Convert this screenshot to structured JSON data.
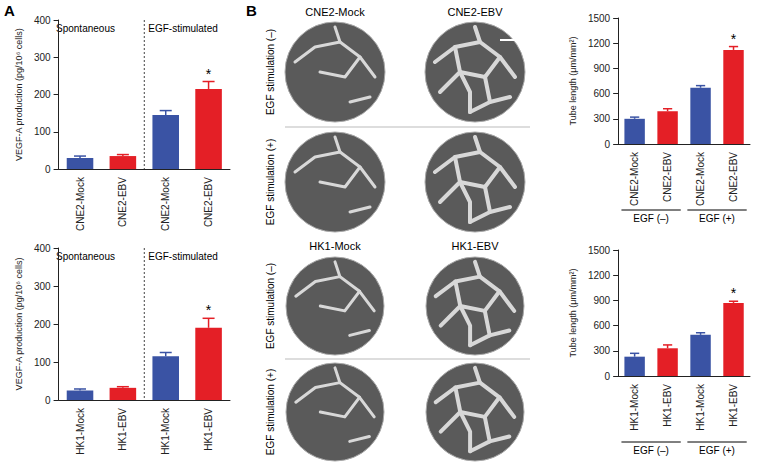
{
  "chart_data": [
    {
      "type": "bar",
      "categories": [
        "CNE2-Mock",
        "CNE2-EBV",
        "CNE2-Mock",
        "CNE2-EBV"
      ],
      "values": [
        30,
        35,
        145,
        215
      ],
      "errors": [
        5,
        4,
        12,
        20
      ],
      "colors": [
        "#3a53a4",
        "#e41f26",
        "#3a53a4",
        "#e41f26"
      ],
      "ylim": [
        0,
        400
      ],
      "yticks": [
        0,
        100,
        200,
        300,
        400
      ],
      "grid": false,
      "y_label": "VEGF-A production (pg/10⁶ cells)",
      "section_labels": [
        "Spontaneous",
        "EGF-stimulated"
      ],
      "annotations": [
        {
          "text": "*",
          "index": 3
        }
      ]
    },
    {
      "type": "bar",
      "categories": [
        "HK1-Mock",
        "HK1-EBV",
        "HK1-Mock",
        "HK1-EBV"
      ],
      "values": [
        25,
        32,
        115,
        190
      ],
      "errors": [
        4,
        3,
        10,
        25
      ],
      "colors": [
        "#3a53a4",
        "#e41f26",
        "#3a53a4",
        "#e41f26"
      ],
      "ylim": [
        0,
        400
      ],
      "yticks": [
        0,
        100,
        200,
        300,
        400
      ],
      "grid": false,
      "y_label": "VEGF-A production (pg/10⁶ cells)",
      "section_labels": [
        "Spontaneous",
        "EGF-stimulated"
      ],
      "annotations": [
        {
          "text": "*",
          "index": 3
        }
      ]
    },
    {
      "type": "bar",
      "categories": [
        "CNE2-Mock",
        "CNE2-EBV",
        "CNE2-Mock",
        "CNE2-EBV"
      ],
      "values": [
        300,
        390,
        670,
        1120
      ],
      "errors": [
        20,
        30,
        25,
        40
      ],
      "colors": [
        "#3a53a4",
        "#e41f26",
        "#3a53a4",
        "#e41f26"
      ],
      "ylim": [
        0,
        1500
      ],
      "yticks": [
        0,
        300,
        600,
        900,
        1200,
        1500
      ],
      "grid": false,
      "y_label": "Tube length (μm/mm²)",
      "group_labels": [
        "EGF (–)",
        "EGF (+)"
      ],
      "annotations": [
        {
          "text": "*",
          "index": 3
        }
      ]
    },
    {
      "type": "bar",
      "categories": [
        "HK1-Mock",
        "HK1-EBV",
        "HK1-Mock",
        "HK1-EBV"
      ],
      "values": [
        230,
        330,
        490,
        870
      ],
      "errors": [
        40,
        40,
        25,
        20
      ],
      "colors": [
        "#3a53a4",
        "#e41f26",
        "#3a53a4",
        "#e41f26"
      ],
      "ylim": [
        0,
        1500
      ],
      "yticks": [
        0,
        300,
        600,
        900,
        1200,
        1500
      ],
      "grid": false,
      "y_label": "Tube length (μm/mm²)",
      "group_labels": [
        "EGF (–)",
        "EGF (+)"
      ],
      "annotations": [
        {
          "text": "*",
          "index": 3
        }
      ]
    }
  ],
  "figure": {
    "panel_labels": [
      "A",
      "B"
    ],
    "images": [
      {
        "columns": [
          "CNE2-Mock",
          "CNE2-EBV"
        ],
        "rows": [
          "EGF stimulation (–)",
          "EGF stimulation (+)"
        ]
      },
      {
        "columns": [
          "HK1-Mock",
          "HK1-EBV"
        ],
        "rows": [
          "EGF stimulation (–)",
          "EGF stimulation (+)"
        ]
      }
    ]
  }
}
